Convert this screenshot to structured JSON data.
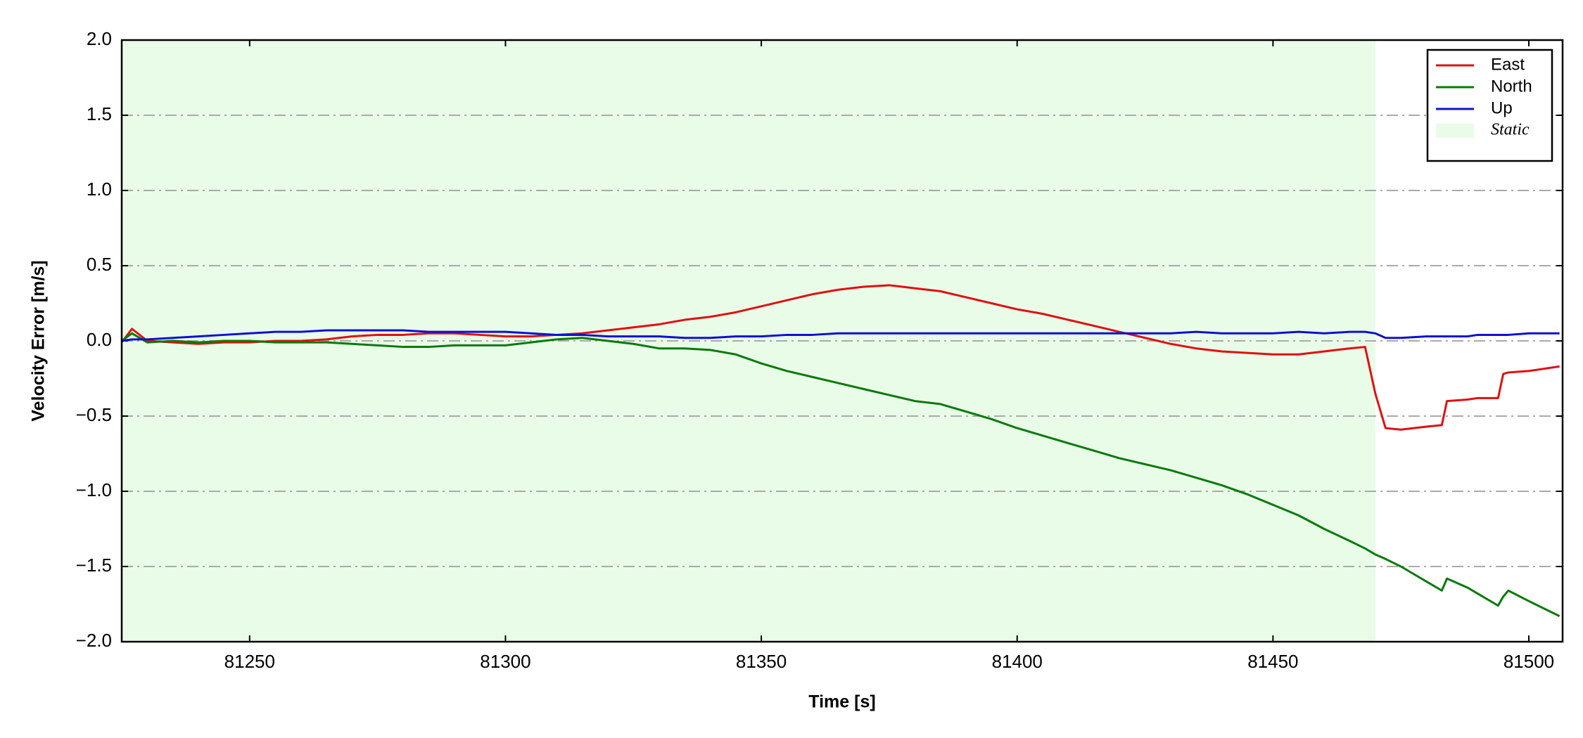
{
  "chart_data": {
    "type": "line",
    "xlabel": "Time [s]",
    "ylabel": "Velocity Error [m/s]",
    "x": [
      81225,
      81227,
      81230,
      81235,
      81240,
      81245,
      81250,
      81255,
      81260,
      81265,
      81270,
      81275,
      81280,
      81285,
      81290,
      81295,
      81300,
      81305,
      81310,
      81315,
      81320,
      81325,
      81330,
      81335,
      81340,
      81345,
      81350,
      81355,
      81360,
      81365,
      81370,
      81375,
      81380,
      81385,
      81390,
      81395,
      81400,
      81405,
      81410,
      81415,
      81420,
      81425,
      81430,
      81435,
      81440,
      81445,
      81450,
      81455,
      81460,
      81465,
      81468,
      81470,
      81472,
      81475,
      81480,
      81483,
      81484,
      81488,
      81490,
      81494,
      81495,
      81496,
      81500,
      81506
    ],
    "series": [
      {
        "name": "East",
        "color": "#e01010",
        "values": [
          -0.01,
          0.08,
          0.0,
          -0.01,
          -0.02,
          -0.01,
          -0.01,
          0.0,
          0.0,
          0.01,
          0.03,
          0.04,
          0.04,
          0.05,
          0.05,
          0.04,
          0.03,
          0.03,
          0.04,
          0.05,
          0.07,
          0.09,
          0.11,
          0.14,
          0.16,
          0.19,
          0.23,
          0.27,
          0.31,
          0.34,
          0.36,
          0.37,
          0.35,
          0.33,
          0.29,
          0.25,
          0.21,
          0.18,
          0.14,
          0.1,
          0.06,
          0.02,
          -0.02,
          -0.05,
          -0.07,
          -0.08,
          -0.09,
          -0.09,
          -0.07,
          -0.05,
          -0.04,
          -0.35,
          -0.58,
          -0.59,
          -0.57,
          -0.56,
          -0.4,
          -0.39,
          -0.38,
          -0.38,
          -0.22,
          -0.21,
          -0.2,
          -0.17
        ]
      },
      {
        "name": "North",
        "color": "#0a7a0a",
        "values": [
          0.0,
          0.05,
          -0.01,
          0.0,
          -0.01,
          0.0,
          0.0,
          -0.01,
          -0.01,
          -0.01,
          -0.02,
          -0.03,
          -0.04,
          -0.04,
          -0.03,
          -0.03,
          -0.03,
          -0.01,
          0.01,
          0.02,
          0.0,
          -0.02,
          -0.05,
          -0.05,
          -0.06,
          -0.09,
          -0.15,
          -0.2,
          -0.24,
          -0.28,
          -0.32,
          -0.36,
          -0.4,
          -0.42,
          -0.47,
          -0.52,
          -0.58,
          -0.63,
          -0.68,
          -0.73,
          -0.78,
          -0.82,
          -0.86,
          -0.91,
          -0.96,
          -1.02,
          -1.09,
          -1.16,
          -1.25,
          -1.33,
          -1.38,
          -1.42,
          -1.45,
          -1.5,
          -1.6,
          -1.66,
          -1.58,
          -1.64,
          -1.68,
          -1.76,
          -1.7,
          -1.66,
          -1.73,
          -1.83
        ]
      },
      {
        "name": "Up",
        "color": "#1010d0",
        "values": [
          0.0,
          0.01,
          0.01,
          0.02,
          0.03,
          0.04,
          0.05,
          0.06,
          0.06,
          0.07,
          0.07,
          0.07,
          0.07,
          0.06,
          0.06,
          0.06,
          0.06,
          0.05,
          0.04,
          0.04,
          0.03,
          0.03,
          0.03,
          0.02,
          0.02,
          0.03,
          0.03,
          0.04,
          0.04,
          0.05,
          0.05,
          0.05,
          0.05,
          0.05,
          0.05,
          0.05,
          0.05,
          0.05,
          0.05,
          0.05,
          0.05,
          0.05,
          0.05,
          0.06,
          0.05,
          0.05,
          0.05,
          0.06,
          0.05,
          0.06,
          0.06,
          0.05,
          0.02,
          0.02,
          0.03,
          0.03,
          0.03,
          0.03,
          0.04,
          0.04,
          0.04,
          0.04,
          0.05,
          0.05
        ]
      }
    ],
    "spans": [
      {
        "name": "Static",
        "start": 81225,
        "end": 81470,
        "color": "#e8fce8"
      }
    ],
    "xlim": [
      81225,
      81506.6
    ],
    "ylim": [
      -2,
      2
    ],
    "xticks": [
      81250,
      81300,
      81350,
      81400,
      81450,
      81500
    ],
    "yticks": [
      {
        "value": -2,
        "label": "−2.0"
      },
      {
        "value": -1.5,
        "label": "−1.5"
      },
      {
        "value": -1,
        "label": "−1.0"
      },
      {
        "value": -0.5,
        "label": "−0.5"
      },
      {
        "value": 0,
        "label": "0.0"
      },
      {
        "value": 0.5,
        "label": "0.5"
      },
      {
        "value": 1,
        "label": "1.0"
      },
      {
        "value": 1.5,
        "label": "1.5"
      },
      {
        "value": 2,
        "label": "2.0"
      }
    ],
    "grid": true,
    "legend": "upper right"
  }
}
